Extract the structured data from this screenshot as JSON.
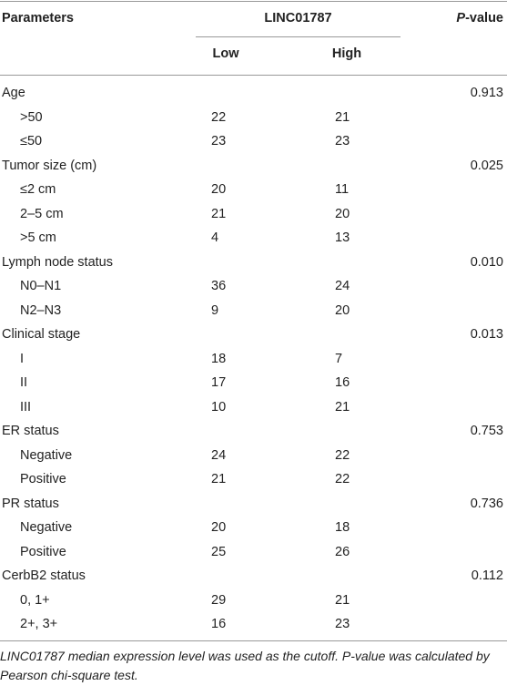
{
  "header": {
    "parameters": "Parameters",
    "group": "LINC01787",
    "p_value_italic": "P",
    "p_value_rest": "-value",
    "low": "Low",
    "high": "High"
  },
  "groups": [
    {
      "label": "Age",
      "p_value": "0.913",
      "rows": [
        {
          "label": ">50",
          "low": "22",
          "high": "21"
        },
        {
          "label": "≤50",
          "low": "23",
          "high": "23"
        }
      ]
    },
    {
      "label": "Tumor size (cm)",
      "p_value": "0.025",
      "rows": [
        {
          "label": "≤2 cm",
          "low": "20",
          "high": "11"
        },
        {
          "label": "2–5 cm",
          "low": "21",
          "high": "20"
        },
        {
          "label": ">5 cm",
          "low": "4",
          "high": "13"
        }
      ]
    },
    {
      "label": "Lymph node status",
      "p_value": "0.010",
      "rows": [
        {
          "label": "N0–N1",
          "low": "36",
          "high": "24"
        },
        {
          "label": "N2–N3",
          "low": "9",
          "high": "20"
        }
      ]
    },
    {
      "label": "Clinical stage",
      "p_value": "0.013",
      "rows": [
        {
          "label": "I",
          "low": "18",
          "high": "7"
        },
        {
          "label": "II",
          "low": "17",
          "high": "16"
        },
        {
          "label": "III",
          "low": "10",
          "high": "21"
        }
      ]
    },
    {
      "label": "ER status",
      "p_value": "0.753",
      "rows": [
        {
          "label": "Negative",
          "low": "24",
          "high": "22"
        },
        {
          "label": "Positive",
          "low": "21",
          "high": "22"
        }
      ]
    },
    {
      "label": "PR status",
      "p_value": "0.736",
      "rows": [
        {
          "label": "Negative",
          "low": "20",
          "high": "18"
        },
        {
          "label": "Positive",
          "low": "25",
          "high": "26"
        }
      ]
    },
    {
      "label": "CerbB2 status",
      "p_value": "0.112",
      "rows": [
        {
          "label": "0, 1+",
          "low": "29",
          "high": "21"
        },
        {
          "label": "2+, 3+",
          "low": "16",
          "high": "23"
        }
      ]
    }
  ],
  "footnote": "LINC01787 median expression level was used as the cutoff. P-value was calculated by Pearson chi-square test."
}
